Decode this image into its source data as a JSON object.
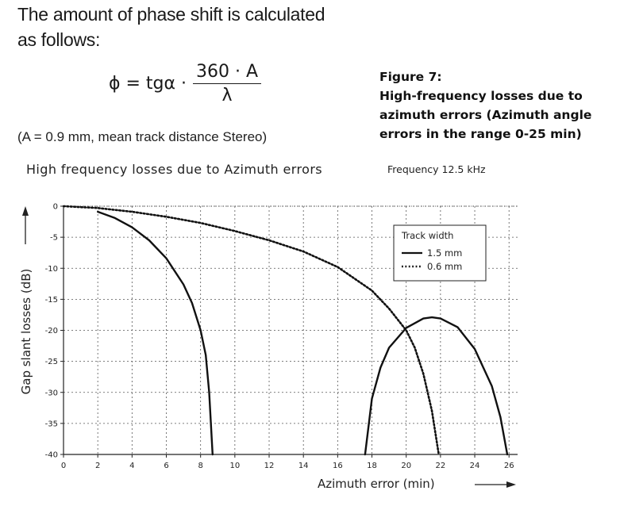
{
  "intro": {
    "line1": "The amount of phase shift is calculated",
    "line2": "as follows:"
  },
  "formula": {
    "lhs": "ϕ = tgα ·",
    "numerator": "360 · A",
    "denominator": "λ"
  },
  "note": "(A = 0.9 mm, mean track distance Stereo)",
  "caption": {
    "line1": "Figure 7:",
    "line2": "High-frequency losses due to",
    "line3": "azimuth errors (Azimuth angle",
    "line4": "errors in the range 0-25 min)"
  },
  "chart_data": {
    "type": "line",
    "title": "High frequency losses due to Azimuth errors",
    "subtitle": "Frequency 12.5 kHz",
    "xlabel": "Azimuth error (min)",
    "ylabel": "Gap slant losses (dB)",
    "xlim": [
      0,
      26.5
    ],
    "ylim": [
      -40,
      0
    ],
    "xticks": [
      0,
      2,
      4,
      6,
      8,
      10,
      12,
      14,
      16,
      18,
      20,
      22,
      24,
      26
    ],
    "yticks": [
      0,
      -5,
      -10,
      -15,
      -20,
      -25,
      -30,
      -35,
      -40
    ],
    "grid": true,
    "legend": {
      "title": "Track width",
      "placement": "upper-right"
    },
    "series": [
      {
        "name": "1.5 mm",
        "style": "solid",
        "segments": [
          [
            [
              2,
              -0.9
            ],
            [
              3,
              -1.9
            ],
            [
              4,
              -3.4
            ],
            [
              5,
              -5.5
            ],
            [
              6,
              -8.4
            ],
            [
              7,
              -12.6
            ],
            [
              7.5,
              -15.6
            ],
            [
              8,
              -20
            ],
            [
              8.3,
              -24
            ],
            [
              8.5,
              -30
            ],
            [
              8.7,
              -40
            ]
          ],
          [
            [
              17.6,
              -40
            ],
            [
              18,
              -31
            ],
            [
              18.5,
              -26
            ],
            [
              19,
              -22.8
            ],
            [
              20,
              -19.6
            ],
            [
              21,
              -18.1
            ],
            [
              21.5,
              -17.9
            ],
            [
              22,
              -18.1
            ],
            [
              23,
              -19.5
            ],
            [
              24,
              -23
            ],
            [
              25,
              -29
            ],
            [
              25.5,
              -34
            ],
            [
              25.9,
              -40
            ]
          ]
        ]
      },
      {
        "name": "0.6 mm",
        "style": "dotted",
        "segments": [
          [
            [
              0,
              0
            ],
            [
              2,
              -0.3
            ],
            [
              4,
              -0.9
            ],
            [
              6,
              -1.7
            ],
            [
              8,
              -2.7
            ],
            [
              10,
              -4
            ],
            [
              12,
              -5.5
            ],
            [
              14,
              -7.3
            ],
            [
              16,
              -9.8
            ],
            [
              18,
              -13.6
            ],
            [
              19,
              -16.5
            ],
            [
              20,
              -20
            ],
            [
              20.5,
              -22.8
            ],
            [
              21,
              -27
            ],
            [
              21.5,
              -33
            ],
            [
              21.9,
              -40
            ]
          ]
        ]
      }
    ]
  }
}
